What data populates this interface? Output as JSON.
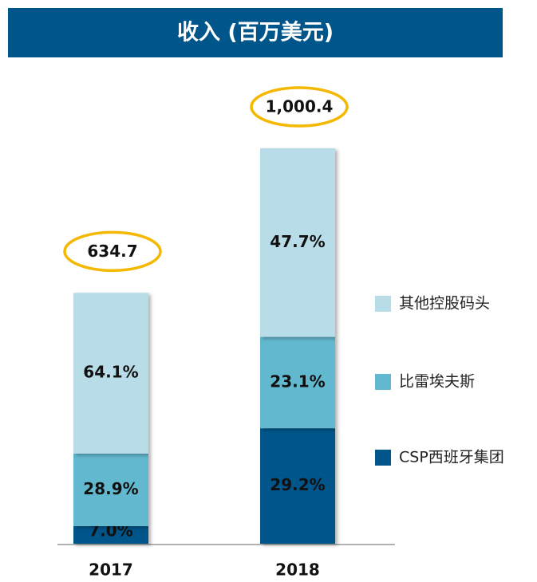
{
  "chart_data": {
    "type": "stacked-bar",
    "title": "收入 (百万美元)",
    "categories": [
      "2017",
      "2018"
    ],
    "series": [
      {
        "name": "CSP西班牙集团",
        "color": "#00558a",
        "values": [
          7.0,
          29.2
        ],
        "value_labels": [
          "7.0%",
          "29.2%"
        ]
      },
      {
        "name": "比雷埃夫斯",
        "color": "#62b8ce",
        "values": [
          28.9,
          23.1
        ],
        "value_labels": [
          "28.9%",
          "23.1%"
        ]
      },
      {
        "name": "其他控股码头",
        "color": "#b8dde8",
        "values": [
          64.1,
          47.7
        ],
        "value_labels": [
          "64.1%",
          "47.7%"
        ]
      }
    ],
    "totals": {
      "values": [
        634.7,
        1000.4
      ],
      "value_labels": [
        "634.7",
        "1,000.4"
      ],
      "color": "#f5b800"
    }
  }
}
